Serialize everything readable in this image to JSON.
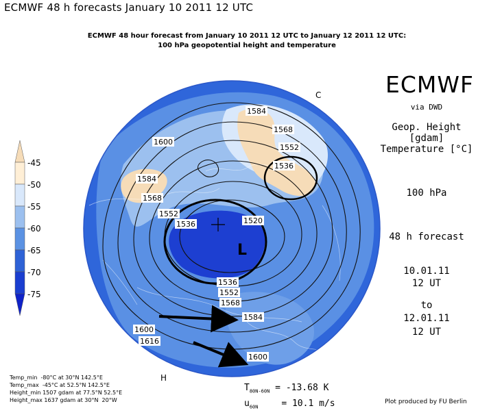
{
  "page_heading": "ECMWF 48 h forecasts January 10 2011 12 UTC",
  "subtitle_line1": "ECMWF 48 hour forecast from January 10 2011 12 UTC to January 12 2011 12 UTC:",
  "subtitle_line2": "100 hPa geopotential height and temperature",
  "logo_text": "ECMWF",
  "logo_sub": "via DWD",
  "variable_1": "Geop. Height [gdam]",
  "variable_2": "Temperature [°C]",
  "level": "100 hPa",
  "forecast_label": "48 h forecast",
  "valid_from_date": "10.01.11",
  "valid_from_time": "12 UT",
  "to_label": "to",
  "valid_to_date": "12.01.11",
  "valid_to_time": "12 UT",
  "colorbar": {
    "labels": [
      "-45",
      "-50",
      "-55",
      "-60",
      "-65",
      "-70",
      "-75"
    ],
    "colors": [
      "#f6dcb8",
      "#ffefd6",
      "#d9e8fb",
      "#9cc0ef",
      "#5b92e3",
      "#2e62d6",
      "#1a3ed0",
      "#0f22c8"
    ]
  },
  "contour_labels": [
    "1584",
    "1568",
    "1552",
    "1536",
    "1600",
    "1584",
    "1568",
    "1552",
    "1536",
    "1520",
    "1536",
    "1552",
    "1568",
    "1584",
    "1600",
    "1616",
    "1600"
  ],
  "pressure_letters": {
    "low": "L",
    "high_1": "H",
    "high_2": "C"
  },
  "stats": {
    "temp_min": "Temp_min  -80°C at 30°N 142.5°E",
    "temp_max": "Temp_max  -45°C at 52.5°N 142.5°E",
    "height_min": "Height_min 1507 gdam at 77.5°N 52.5°E",
    "height_max": "Height_max 1637 gdam at 30°N  20°W"
  },
  "means": {
    "t_symbol": "T",
    "t_sub": "80N-60N",
    "t_value": "=  -13.68 K",
    "u_symbol": "u",
    "u_sub": "60N",
    "u_value": "=  10.1 m/s"
  },
  "credit": "Plot produced by FU Berlin"
}
